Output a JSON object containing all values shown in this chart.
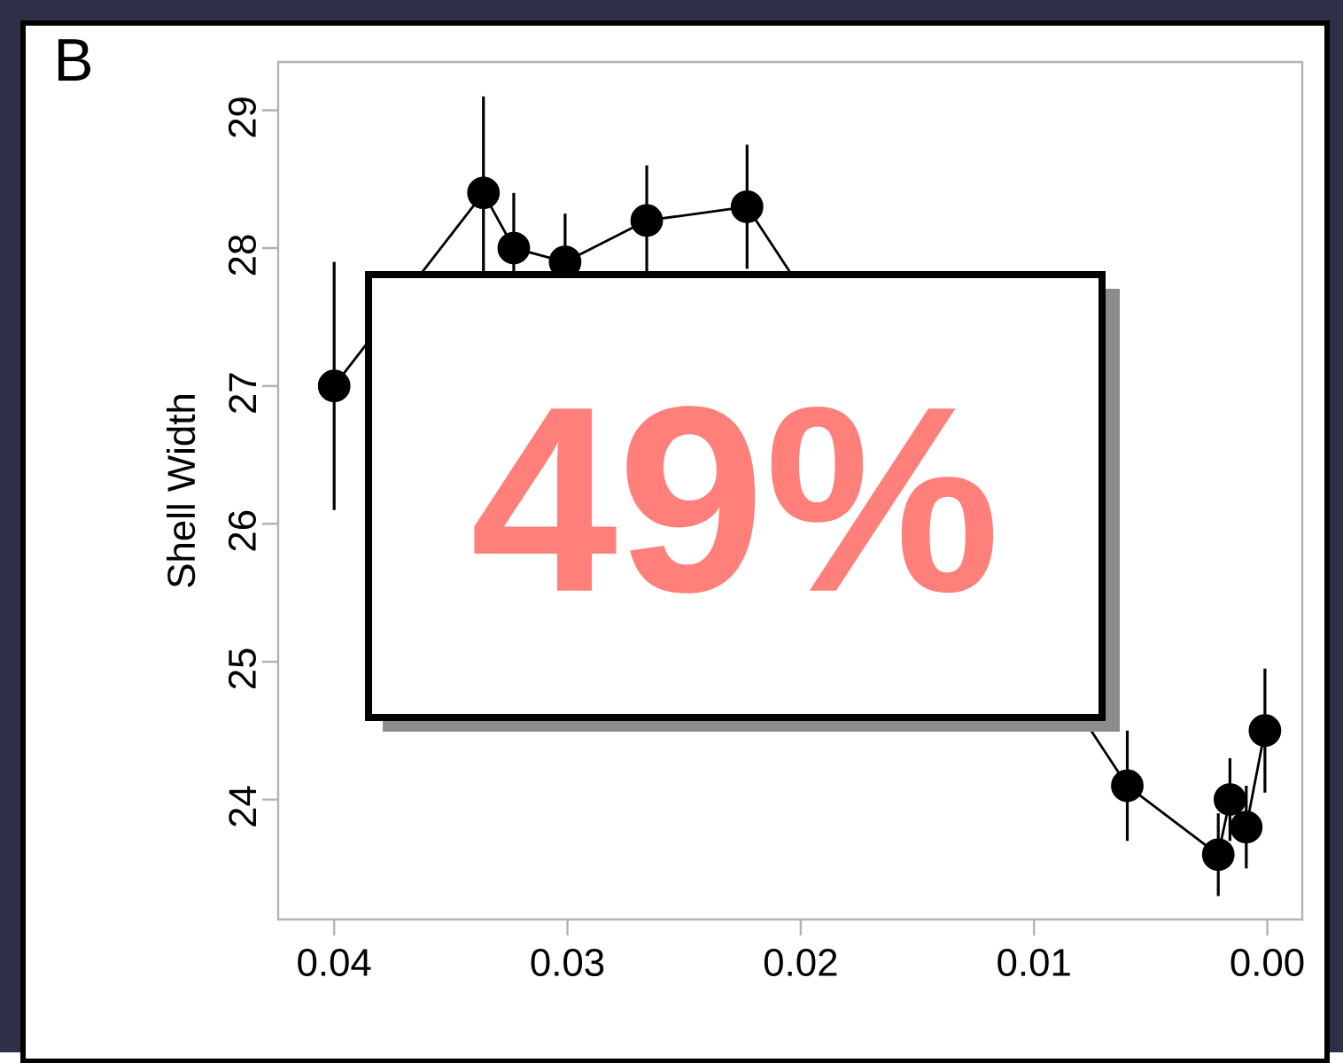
{
  "chart_data": {
    "type": "line",
    "title": "B",
    "ylabel": "Shell Width",
    "x": [
      0.04,
      0.0336,
      0.0323,
      0.0301,
      0.0266,
      0.0223,
      0.006,
      0.0021,
      0.0016,
      0.0009,
      0.0001
    ],
    "values": [
      27.0,
      28.4,
      28.0,
      27.9,
      28.2,
      28.3,
      24.1,
      23.6,
      24.0,
      23.8,
      24.5
    ],
    "errors": [
      0.9,
      0.7,
      0.4,
      0.35,
      0.4,
      0.45,
      0.4,
      0.3,
      0.3,
      0.3,
      0.45
    ],
    "color": "#000000",
    "marker": "circle",
    "line_style": "solid",
    "xlim": [
      0.0424,
      -0.0015
    ],
    "ylim": [
      23.13,
      29.35
    ],
    "xticks": [
      {
        "value": 0.04,
        "label": "0.04"
      },
      {
        "value": 0.03,
        "label": "0.03"
      },
      {
        "value": 0.02,
        "label": "0.02"
      },
      {
        "value": 0.01,
        "label": "0.01"
      },
      {
        "value": 0.0,
        "label": "0.00"
      }
    ],
    "yticks": [
      24,
      25,
      26,
      27,
      28,
      29
    ],
    "grid": false,
    "annotations": [
      "49%"
    ]
  }
}
